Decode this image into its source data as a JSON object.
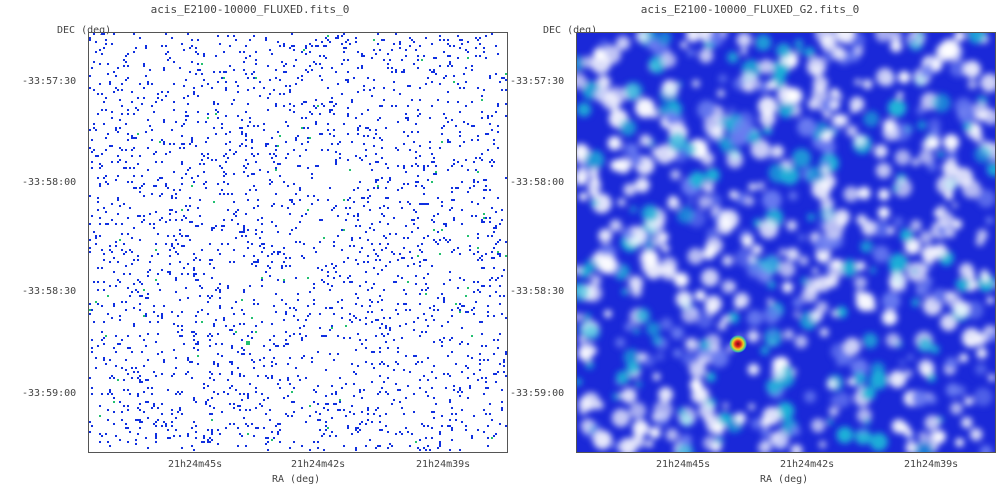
{
  "panels": [
    {
      "title": "acis_E2100-10000_FLUXED.fits_0",
      "dec_label": "DEC (deg)",
      "ra_label": "RA (deg)",
      "dec_ticks": [
        "-33:57:30",
        "-33:58:00",
        "-33:58:30",
        "-33:59:00"
      ],
      "ra_ticks": [
        "21h24m45s",
        "21h24m42s",
        "21h24m39s"
      ],
      "style": "sparse",
      "colors": {
        "background": "#ffffff",
        "pixel": "#1030e0",
        "highlight": "#22c070"
      }
    },
    {
      "title": "acis_E2100-10000_FLUXED_G2.fits_0",
      "dec_label": "DEC (deg)",
      "ra_label": "RA (deg)",
      "dec_ticks": [
        "-33:57:30",
        "-33:58:00",
        "-33:58:30",
        "-33:59:00"
      ],
      "ra_ticks": [
        "21h24m45s",
        "21h24m42s",
        "21h24m39s"
      ],
      "style": "smoothed",
      "colors": {
        "background": "#1a28d8",
        "low": "#ffffff",
        "mid": "#6a7cf0",
        "high": "#1fb6d8",
        "source": "#e02020"
      }
    }
  ]
}
